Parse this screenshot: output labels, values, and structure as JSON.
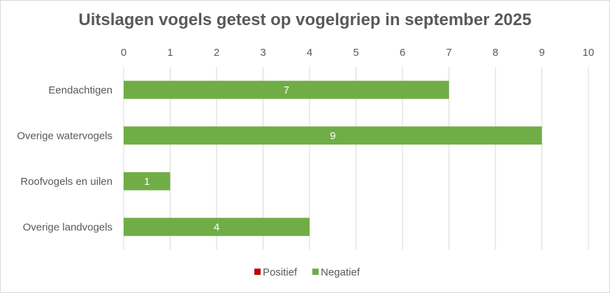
{
  "chart_data": {
    "type": "bar",
    "orientation": "horizontal",
    "stacked": true,
    "title": "Uitslagen vogels getest op vogelgriep in september 2025",
    "categories": [
      "Eendachtigen",
      "Overige watervogels",
      "Roofvogels en uilen",
      "Overige landvogels"
    ],
    "series": [
      {
        "name": "Positief",
        "color": "#c00000",
        "values": [
          0,
          0,
          0,
          0
        ]
      },
      {
        "name": "Negatief",
        "color": "#70ad47",
        "values": [
          7,
          9,
          1,
          4
        ]
      }
    ],
    "xlim": [
      0,
      10
    ],
    "xticks": [
      "0",
      "1",
      "2",
      "3",
      "4",
      "5",
      "6",
      "7",
      "8",
      "9",
      "10"
    ],
    "x_axis_position": "top",
    "grid": true,
    "legend_position": "bottom"
  }
}
